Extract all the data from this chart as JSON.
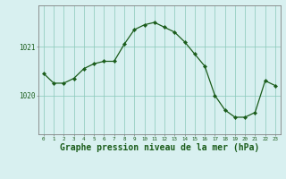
{
  "x": [
    0,
    1,
    2,
    3,
    4,
    5,
    6,
    7,
    8,
    9,
    10,
    11,
    12,
    13,
    14,
    15,
    16,
    17,
    18,
    19,
    20,
    21,
    22,
    23
  ],
  "y": [
    1020.45,
    1020.25,
    1020.25,
    1020.35,
    1020.55,
    1020.65,
    1020.7,
    1020.7,
    1021.05,
    1021.35,
    1021.45,
    1021.5,
    1021.4,
    1021.3,
    1021.1,
    1020.85,
    1020.6,
    1020.0,
    1019.7,
    1019.55,
    1019.55,
    1019.65,
    1020.3,
    1020.2
  ],
  "line_color": "#1a5c1a",
  "marker_color": "#1a5c1a",
  "bg_color": "#d8f0f0",
  "grid_color": "#88c8b8",
  "xlabel": "Graphe pression niveau de la mer (hPa)",
  "xlabel_fontsize": 7,
  "ylabel_ticks": [
    1020,
    1021
  ],
  "xlim": [
    -0.5,
    23.5
  ],
  "ylim": [
    1019.2,
    1021.85
  ],
  "title": "",
  "figsize": [
    3.2,
    2.0
  ],
  "dpi": 100
}
